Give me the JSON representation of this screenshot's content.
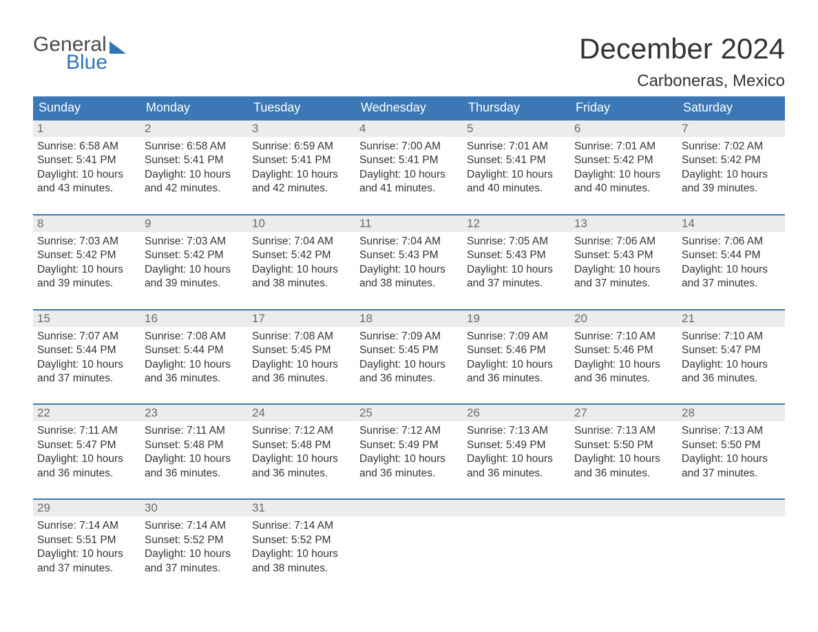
{
  "brand": {
    "word1": "General",
    "word2": "Blue",
    "word1_color": "#4a4a4a",
    "word2_color": "#2e75b6",
    "sail_color": "#2e75b6"
  },
  "title": {
    "month_year": "December 2024",
    "location": "Carboneras, Mexico",
    "title_fontsize": 42,
    "location_fontsize": 24,
    "text_color": "#333333"
  },
  "calendar": {
    "header_bg": "#3b78b5",
    "header_text_color": "#ffffff",
    "daynum_bg": "#ececec",
    "daynum_color": "#6a6a6a",
    "week_border_color": "#3b78b5",
    "body_text_color": "#333333",
    "days_of_week": [
      "Sunday",
      "Monday",
      "Tuesday",
      "Wednesday",
      "Thursday",
      "Friday",
      "Saturday"
    ],
    "weeks": [
      [
        {
          "n": "1",
          "sunrise": "Sunrise: 6:58 AM",
          "sunset": "Sunset: 5:41 PM",
          "dl1": "Daylight: 10 hours",
          "dl2": "and 43 minutes."
        },
        {
          "n": "2",
          "sunrise": "Sunrise: 6:58 AM",
          "sunset": "Sunset: 5:41 PM",
          "dl1": "Daylight: 10 hours",
          "dl2": "and 42 minutes."
        },
        {
          "n": "3",
          "sunrise": "Sunrise: 6:59 AM",
          "sunset": "Sunset: 5:41 PM",
          "dl1": "Daylight: 10 hours",
          "dl2": "and 42 minutes."
        },
        {
          "n": "4",
          "sunrise": "Sunrise: 7:00 AM",
          "sunset": "Sunset: 5:41 PM",
          "dl1": "Daylight: 10 hours",
          "dl2": "and 41 minutes."
        },
        {
          "n": "5",
          "sunrise": "Sunrise: 7:01 AM",
          "sunset": "Sunset: 5:41 PM",
          "dl1": "Daylight: 10 hours",
          "dl2": "and 40 minutes."
        },
        {
          "n": "6",
          "sunrise": "Sunrise: 7:01 AM",
          "sunset": "Sunset: 5:42 PM",
          "dl1": "Daylight: 10 hours",
          "dl2": "and 40 minutes."
        },
        {
          "n": "7",
          "sunrise": "Sunrise: 7:02 AM",
          "sunset": "Sunset: 5:42 PM",
          "dl1": "Daylight: 10 hours",
          "dl2": "and 39 minutes."
        }
      ],
      [
        {
          "n": "8",
          "sunrise": "Sunrise: 7:03 AM",
          "sunset": "Sunset: 5:42 PM",
          "dl1": "Daylight: 10 hours",
          "dl2": "and 39 minutes."
        },
        {
          "n": "9",
          "sunrise": "Sunrise: 7:03 AM",
          "sunset": "Sunset: 5:42 PM",
          "dl1": "Daylight: 10 hours",
          "dl2": "and 39 minutes."
        },
        {
          "n": "10",
          "sunrise": "Sunrise: 7:04 AM",
          "sunset": "Sunset: 5:42 PM",
          "dl1": "Daylight: 10 hours",
          "dl2": "and 38 minutes."
        },
        {
          "n": "11",
          "sunrise": "Sunrise: 7:04 AM",
          "sunset": "Sunset: 5:43 PM",
          "dl1": "Daylight: 10 hours",
          "dl2": "and 38 minutes."
        },
        {
          "n": "12",
          "sunrise": "Sunrise: 7:05 AM",
          "sunset": "Sunset: 5:43 PM",
          "dl1": "Daylight: 10 hours",
          "dl2": "and 37 minutes."
        },
        {
          "n": "13",
          "sunrise": "Sunrise: 7:06 AM",
          "sunset": "Sunset: 5:43 PM",
          "dl1": "Daylight: 10 hours",
          "dl2": "and 37 minutes."
        },
        {
          "n": "14",
          "sunrise": "Sunrise: 7:06 AM",
          "sunset": "Sunset: 5:44 PM",
          "dl1": "Daylight: 10 hours",
          "dl2": "and 37 minutes."
        }
      ],
      [
        {
          "n": "15",
          "sunrise": "Sunrise: 7:07 AM",
          "sunset": "Sunset: 5:44 PM",
          "dl1": "Daylight: 10 hours",
          "dl2": "and 37 minutes."
        },
        {
          "n": "16",
          "sunrise": "Sunrise: 7:08 AM",
          "sunset": "Sunset: 5:44 PM",
          "dl1": "Daylight: 10 hours",
          "dl2": "and 36 minutes."
        },
        {
          "n": "17",
          "sunrise": "Sunrise: 7:08 AM",
          "sunset": "Sunset: 5:45 PM",
          "dl1": "Daylight: 10 hours",
          "dl2": "and 36 minutes."
        },
        {
          "n": "18",
          "sunrise": "Sunrise: 7:09 AM",
          "sunset": "Sunset: 5:45 PM",
          "dl1": "Daylight: 10 hours",
          "dl2": "and 36 minutes."
        },
        {
          "n": "19",
          "sunrise": "Sunrise: 7:09 AM",
          "sunset": "Sunset: 5:46 PM",
          "dl1": "Daylight: 10 hours",
          "dl2": "and 36 minutes."
        },
        {
          "n": "20",
          "sunrise": "Sunrise: 7:10 AM",
          "sunset": "Sunset: 5:46 PM",
          "dl1": "Daylight: 10 hours",
          "dl2": "and 36 minutes."
        },
        {
          "n": "21",
          "sunrise": "Sunrise: 7:10 AM",
          "sunset": "Sunset: 5:47 PM",
          "dl1": "Daylight: 10 hours",
          "dl2": "and 36 minutes."
        }
      ],
      [
        {
          "n": "22",
          "sunrise": "Sunrise: 7:11 AM",
          "sunset": "Sunset: 5:47 PM",
          "dl1": "Daylight: 10 hours",
          "dl2": "and 36 minutes."
        },
        {
          "n": "23",
          "sunrise": "Sunrise: 7:11 AM",
          "sunset": "Sunset: 5:48 PM",
          "dl1": "Daylight: 10 hours",
          "dl2": "and 36 minutes."
        },
        {
          "n": "24",
          "sunrise": "Sunrise: 7:12 AM",
          "sunset": "Sunset: 5:48 PM",
          "dl1": "Daylight: 10 hours",
          "dl2": "and 36 minutes."
        },
        {
          "n": "25",
          "sunrise": "Sunrise: 7:12 AM",
          "sunset": "Sunset: 5:49 PM",
          "dl1": "Daylight: 10 hours",
          "dl2": "and 36 minutes."
        },
        {
          "n": "26",
          "sunrise": "Sunrise: 7:13 AM",
          "sunset": "Sunset: 5:49 PM",
          "dl1": "Daylight: 10 hours",
          "dl2": "and 36 minutes."
        },
        {
          "n": "27",
          "sunrise": "Sunrise: 7:13 AM",
          "sunset": "Sunset: 5:50 PM",
          "dl1": "Daylight: 10 hours",
          "dl2": "and 36 minutes."
        },
        {
          "n": "28",
          "sunrise": "Sunrise: 7:13 AM",
          "sunset": "Sunset: 5:50 PM",
          "dl1": "Daylight: 10 hours",
          "dl2": "and 37 minutes."
        }
      ],
      [
        {
          "n": "29",
          "sunrise": "Sunrise: 7:14 AM",
          "sunset": "Sunset: 5:51 PM",
          "dl1": "Daylight: 10 hours",
          "dl2": "and 37 minutes."
        },
        {
          "n": "30",
          "sunrise": "Sunrise: 7:14 AM",
          "sunset": "Sunset: 5:52 PM",
          "dl1": "Daylight: 10 hours",
          "dl2": "and 37 minutes."
        },
        {
          "n": "31",
          "sunrise": "Sunrise: 7:14 AM",
          "sunset": "Sunset: 5:52 PM",
          "dl1": "Daylight: 10 hours",
          "dl2": "and 38 minutes."
        },
        {
          "n": "",
          "sunrise": "",
          "sunset": "",
          "dl1": "",
          "dl2": ""
        },
        {
          "n": "",
          "sunrise": "",
          "sunset": "",
          "dl1": "",
          "dl2": ""
        },
        {
          "n": "",
          "sunrise": "",
          "sunset": "",
          "dl1": "",
          "dl2": ""
        },
        {
          "n": "",
          "sunrise": "",
          "sunset": "",
          "dl1": "",
          "dl2": ""
        }
      ]
    ]
  }
}
